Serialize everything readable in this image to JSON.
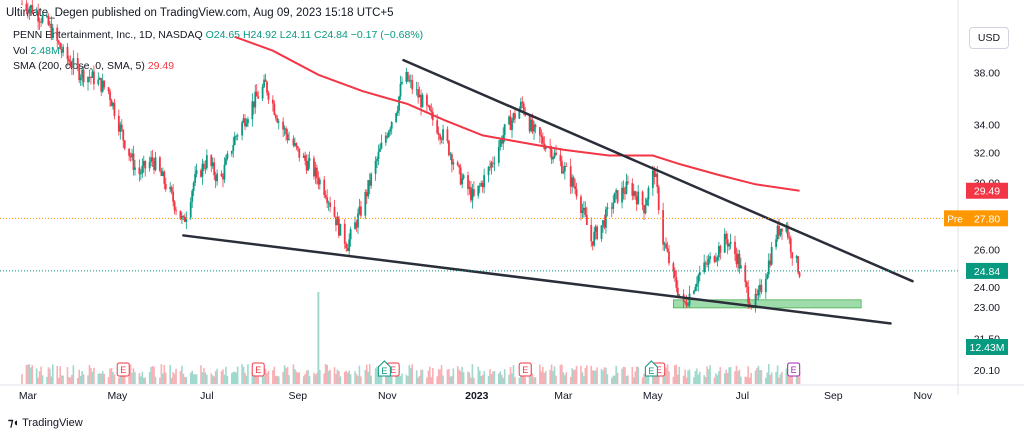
{
  "header": {
    "publisher_line": "Ultimate_Degen published on TradingView.com, Aug 09, 2023 15:18 UTC+5"
  },
  "legend": {
    "symbol": "PENN Entertainment, Inc., 1D, NASDAQ",
    "open": "O24.65",
    "high": "H24.92",
    "low": "L24.11",
    "close": "C24.84",
    "change": "−0.17 (−0.68%)",
    "volume_label": "Vol",
    "volume_value": "2.48M",
    "sma_label": "SMA (200, close, 0, SMA, 5)",
    "sma_value": "29.49"
  },
  "toolbar": {
    "currency": "USD"
  },
  "brand": {
    "name": "TradingView",
    "logo": "tradingview-logo"
  },
  "colors": {
    "up": "#089981",
    "down": "#f23645",
    "sma": "#f23645",
    "trendline": "#2a2e39",
    "zone": "#7fd08f",
    "pre": "#ff9800"
  },
  "chart_data": {
    "type": "candlestick",
    "symbol": "PENN",
    "interval": "1D",
    "y_axis": {
      "scale": "log",
      "range": [
        19.5,
        42.5
      ],
      "ticks": [
        "38.00",
        "34.00",
        "32.00",
        "30.00",
        "26.00",
        "24.00",
        "23.00",
        "21.50",
        "20.10"
      ]
    },
    "x_axis": {
      "ticks": [
        "Mar",
        "May",
        "Jul",
        "Sep",
        "Nov",
        "2023",
        "Mar",
        "May",
        "Jul",
        "Sep",
        "Nov"
      ]
    },
    "price_badges": [
      {
        "label": "",
        "value": "29.49",
        "color": "#f23645"
      },
      {
        "label": "Pre",
        "value": "27.80",
        "color": "#ff9800"
      },
      {
        "label": "",
        "value": "24.84",
        "color": "#089981"
      },
      {
        "label": "",
        "value": "12.43M",
        "color": "#089981"
      }
    ],
    "price_path": [
      [
        "2022-02-25",
        44.0
      ],
      [
        "2022-03-05",
        43.5
      ],
      [
        "2022-03-15",
        42.0
      ],
      [
        "2022-03-25",
        39.5
      ],
      [
        "2022-04-05",
        38.0
      ],
      [
        "2022-04-15",
        37.5
      ],
      [
        "2022-04-25",
        36.5
      ],
      [
        "2022-05-05",
        33.0
      ],
      [
        "2022-05-15",
        30.5
      ],
      [
        "2022-05-25",
        31.5
      ],
      [
        "2022-06-05",
        29.5
      ],
      [
        "2022-06-15",
        27.5
      ],
      [
        "2022-06-22",
        30.0
      ],
      [
        "2022-07-01",
        31.5
      ],
      [
        "2022-07-10",
        30.0
      ],
      [
        "2022-07-20",
        33.0
      ],
      [
        "2022-08-01",
        35.5
      ],
      [
        "2022-08-10",
        37.0
      ],
      [
        "2022-08-20",
        34.0
      ],
      [
        "2022-09-01",
        32.0
      ],
      [
        "2022-09-10",
        31.0
      ],
      [
        "2022-09-20",
        29.5
      ],
      [
        "2022-09-30",
        27.0
      ],
      [
        "2022-10-05",
        26.3
      ],
      [
        "2022-10-15",
        28.5
      ],
      [
        "2022-10-25",
        31.5
      ],
      [
        "2022-11-01",
        33.5
      ],
      [
        "2022-11-08",
        35.5
      ],
      [
        "2022-11-12",
        37.8
      ],
      [
        "2022-11-20",
        36.5
      ],
      [
        "2022-12-01",
        34.5
      ],
      [
        "2022-12-10",
        33.0
      ],
      [
        "2022-12-20",
        30.5
      ],
      [
        "2022-12-30",
        29.0
      ],
      [
        "2023-01-10",
        31.0
      ],
      [
        "2023-01-20",
        33.5
      ],
      [
        "2023-02-01",
        35.5
      ],
      [
        "2023-02-08",
        33.5
      ],
      [
        "2023-02-18",
        32.5
      ],
      [
        "2023-03-01",
        31.0
      ],
      [
        "2023-03-10",
        29.5
      ],
      [
        "2023-03-20",
        26.5
      ],
      [
        "2023-03-28",
        27.5
      ],
      [
        "2023-04-05",
        29.0
      ],
      [
        "2023-04-15",
        29.8
      ],
      [
        "2023-04-25",
        28.5
      ],
      [
        "2023-05-02",
        30.8
      ],
      [
        "2023-05-08",
        26.5
      ],
      [
        "2023-05-15",
        24.5
      ],
      [
        "2023-05-22",
        23.0
      ],
      [
        "2023-06-01",
        24.6
      ],
      [
        "2023-06-10",
        25.5
      ],
      [
        "2023-06-20",
        26.6
      ],
      [
        "2023-06-28",
        25.5
      ],
      [
        "2023-07-03",
        24.0
      ],
      [
        "2023-07-08",
        23.0
      ],
      [
        "2023-07-12",
        23.5
      ],
      [
        "2023-07-18",
        25.0
      ],
      [
        "2023-07-24",
        26.8
      ],
      [
        "2023-07-30",
        27.8
      ],
      [
        "2023-08-02",
        26.5
      ],
      [
        "2023-08-05",
        25.6
      ],
      [
        "2023-08-09",
        24.84
      ]
    ],
    "sma_200": [
      [
        "2022-07-20",
        41.0
      ],
      [
        "2022-08-15",
        39.8
      ],
      [
        "2022-09-15",
        37.8
      ],
      [
        "2022-10-15",
        36.5
      ],
      [
        "2022-11-15",
        35.5
      ],
      [
        "2022-12-10",
        34.3
      ],
      [
        "2023-01-05",
        33.2
      ],
      [
        "2023-02-01",
        32.7
      ],
      [
        "2023-03-01",
        32.2
      ],
      [
        "2023-04-01",
        31.8
      ],
      [
        "2023-05-01",
        31.8
      ],
      [
        "2023-05-20",
        31.2
      ],
      [
        "2023-06-15",
        30.5
      ],
      [
        "2023-07-10",
        29.9
      ],
      [
        "2023-08-09",
        29.49
      ]
    ],
    "trendlines": [
      {
        "name": "upper-trendline",
        "from": [
          "2022-11-12",
          39.0
        ],
        "to": [
          "2023-10-25",
          24.3
        ]
      },
      {
        "name": "lower-trendline",
        "from": [
          "2022-06-15",
          26.8
        ],
        "to": [
          "2023-10-10",
          22.2
        ]
      }
    ],
    "support_zone": {
      "from": "2023-05-15",
      "to": "2023-09-20",
      "low": 22.95,
      "high": 23.35
    },
    "volume_spike": {
      "date": "2022-09-15",
      "label": ""
    },
    "earnings_markers": [
      {
        "date": "2022-05-05",
        "type": "E"
      },
      {
        "date": "2022-08-05",
        "type": "E"
      },
      {
        "date": "2022-11-05",
        "type": "E"
      },
      {
        "date": "2023-02-03",
        "type": "E"
      },
      {
        "date": "2023-05-05",
        "type": "E"
      },
      {
        "date": "2023-08-05",
        "type": "E"
      }
    ],
    "event_markers": [
      {
        "date": "2022-10-30",
        "type": "E"
      },
      {
        "date": "2023-04-30",
        "type": "E"
      }
    ]
  }
}
